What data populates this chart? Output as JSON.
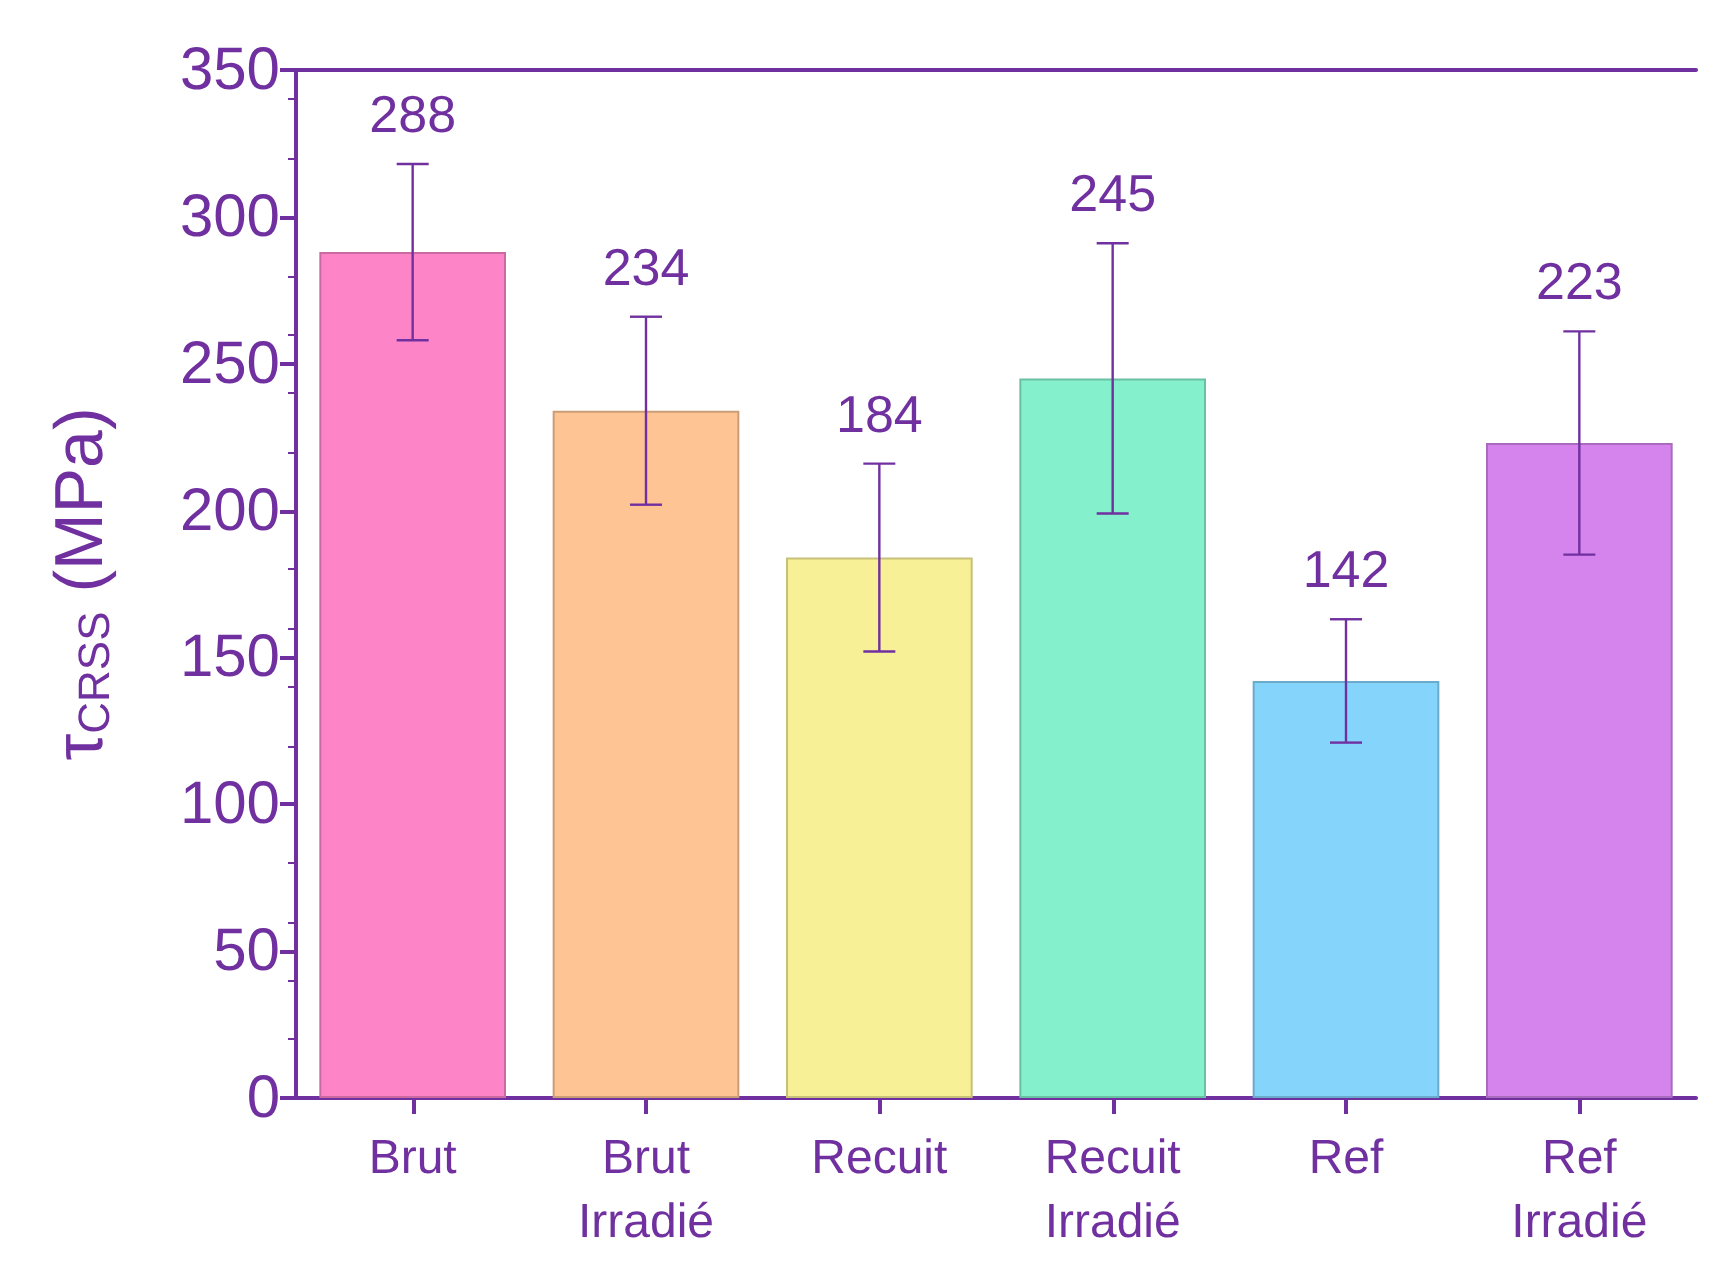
{
  "chart_data": {
    "type": "bar",
    "ylabel": "τ$_{CRSS}$ (MPa)",
    "categories": [
      "Brut",
      "Brut\nIrradié",
      "Recuit",
      "Recuit\nIrradié",
      "Ref",
      "Ref\nIrradié"
    ],
    "values": [
      288,
      234,
      184,
      245,
      142,
      223
    ],
    "errors": [
      30,
      32,
      32,
      46,
      21,
      38
    ],
    "colors": [
      "#fe84c8",
      "#fec494",
      "#f8f096",
      "#84f0cc",
      "#84d4fc",
      "#d484ec"
    ],
    "ylim": [
      0,
      350
    ],
    "yticks": [
      0,
      50,
      100,
      150,
      200,
      250,
      300,
      350
    ],
    "data_labels": true
  }
}
